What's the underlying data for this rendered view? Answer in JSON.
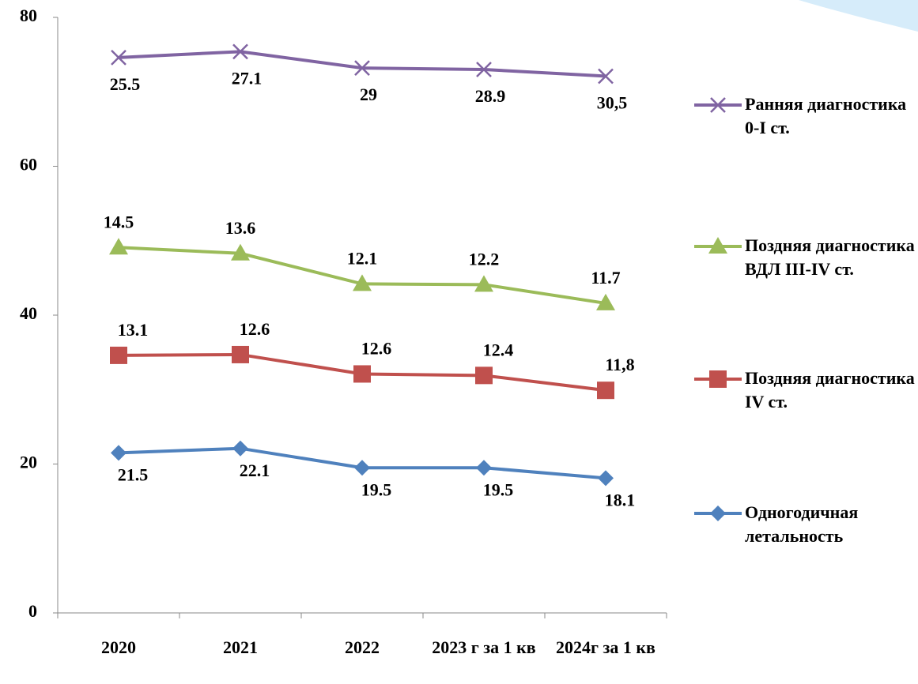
{
  "chart_data": {
    "type": "stacked-line",
    "categories": [
      "2020",
      "2021",
      "2022",
      "2023 г за 1 кв",
      "2024г за 1 кв"
    ],
    "ylim": [
      0,
      80
    ],
    "yticks": [
      0,
      20,
      40,
      60,
      80
    ],
    "series": [
      {
        "name": "Одногодичная летальность",
        "color": "#4f81bd",
        "marker": "diamond",
        "values": [
          21.5,
          22.1,
          19.5,
          19.5,
          18.1
        ]
      },
      {
        "name": "Поздняя диагностика IV ст.",
        "color": "#c0504d",
        "marker": "square",
        "values": [
          13.1,
          12.6,
          12.6,
          12.4,
          11.8
        ],
        "value_labels": [
          "13.1",
          "12.6",
          "12.6",
          "12.4",
          "11,8"
        ]
      },
      {
        "name": "Поздняя диагностика ВДЛ III-IV ст.",
        "color": "#9bbb59",
        "marker": "triangle",
        "values": [
          14.5,
          13.6,
          12.1,
          12.2,
          11.7
        ]
      },
      {
        "name": "Ранняя диагностика 0-I ст.",
        "color": "#8064a2",
        "marker": "x",
        "values": [
          25.5,
          27.1,
          29,
          28.9,
          30.5
        ],
        "value_labels": [
          "25.5",
          "27.1",
          "29",
          "28.9",
          "30,5"
        ]
      }
    ]
  }
}
